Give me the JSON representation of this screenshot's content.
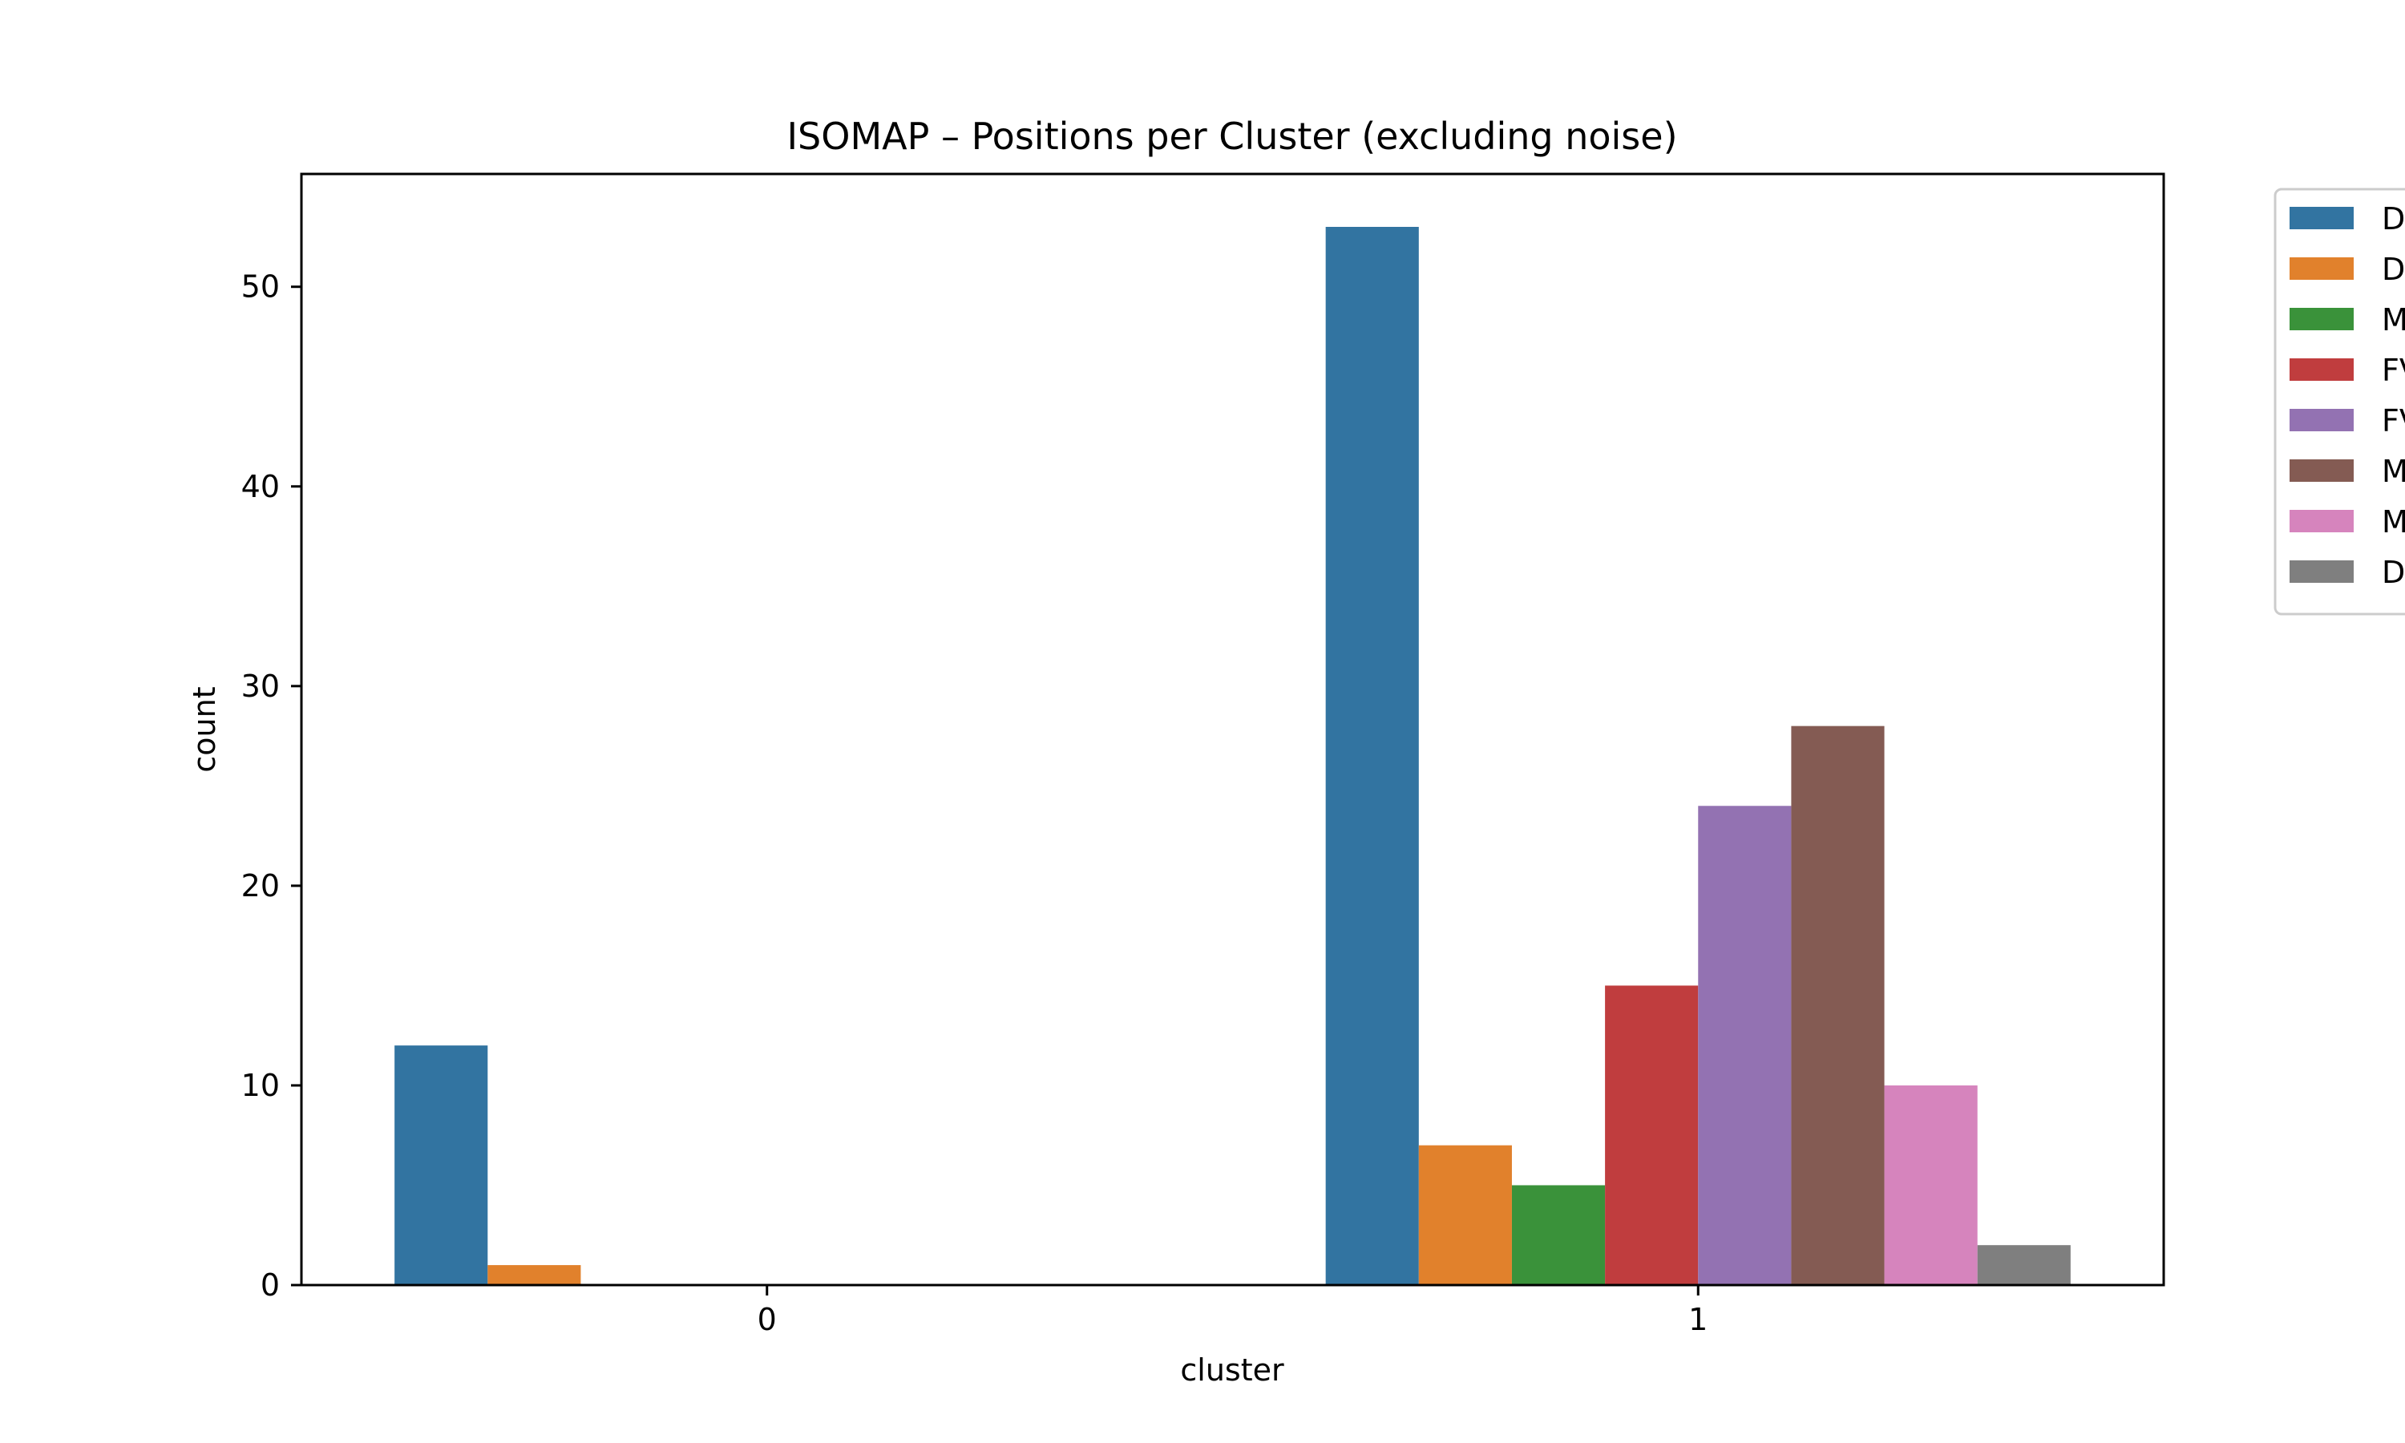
{
  "chart_data": {
    "type": "bar",
    "title": "ISOMAP – Positions per Cluster (excluding noise)",
    "xlabel": "cluster",
    "ylabel": "count",
    "categories": [
      "0",
      "1"
    ],
    "ylim": [
      0,
      55.65
    ],
    "yticks": [
      0,
      10,
      20,
      30,
      40,
      50
    ],
    "grid": false,
    "legend_placement": "outside-right, top (clipped)",
    "series": [
      {
        "name": "D",
        "color": "#3274a1",
        "values": [
          12,
          53
        ]
      },
      {
        "name": "D",
        "color": "#e1812c",
        "values": [
          1,
          7
        ]
      },
      {
        "name": "M",
        "color": "#3a923a",
        "values": [
          0,
          5
        ]
      },
      {
        "name": "FV",
        "color": "#c03d3e",
        "values": [
          0,
          15
        ]
      },
      {
        "name": "FV",
        "color": "#9372b2",
        "values": [
          0,
          24
        ]
      },
      {
        "name": "M",
        "color": "#845b53",
        "values": [
          0,
          28
        ]
      },
      {
        "name": "M",
        "color": "#d684bd",
        "values": [
          0,
          10
        ]
      },
      {
        "name": "D",
        "color": "#7f7f7f",
        "values": [
          0,
          2
        ]
      }
    ]
  }
}
